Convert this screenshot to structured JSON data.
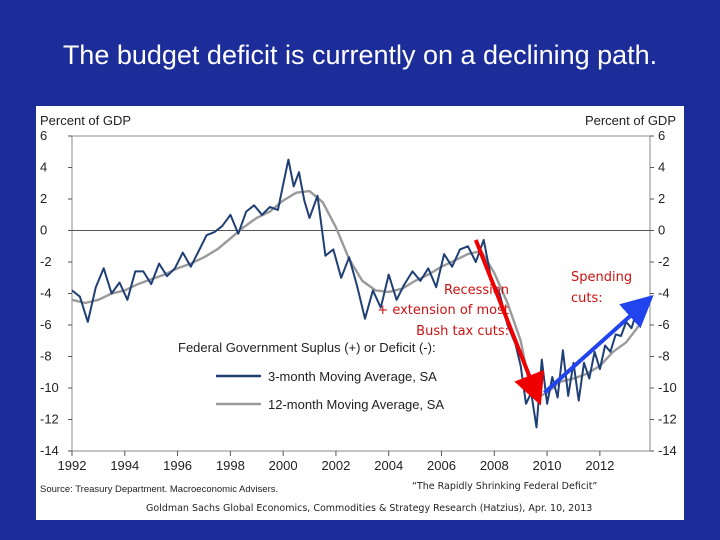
{
  "slide": {
    "title": "The budget deficit is currently on a declining path."
  },
  "colors": {
    "background": "#1c2d9a",
    "series_3m": "#1f3f75",
    "series_12m": "#9a9a9a",
    "annotation_text": "#cc1111",
    "red_arrow": "#ee0000",
    "blue_arrow": "#2244ee"
  },
  "chart_data": {
    "type": "line",
    "title": "Federal Government Suplus (+) or Deficit (-):",
    "ylabel_left": "Percent of GDP",
    "ylabel_right": "Percent of GDP",
    "xlim": [
      1992,
      2013.9
    ],
    "ylim": [
      -14,
      6
    ],
    "x_ticks": [
      1992,
      1994,
      1996,
      1998,
      2000,
      2002,
      2004,
      2006,
      2008,
      2010,
      2012
    ],
    "x_tick_labels": [
      "1992",
      "1994",
      "1996",
      "1998",
      "2000",
      "2002",
      "2004",
      "2006",
      "2008",
      "2010",
      "2012"
    ],
    "y_ticks": [
      6,
      4,
      2,
      0,
      -2,
      -4,
      -6,
      -8,
      -10,
      -12,
      -14
    ],
    "y_tick_labels": [
      "6",
      "4",
      "2",
      "0",
      "-2",
      "-4",
      "-6",
      "-8",
      "-10",
      "-12",
      "-14"
    ],
    "zero_line": true,
    "legend": [
      {
        "name": "3-month Moving Average, SA",
        "color": "#1f3f75"
      },
      {
        "name": "12-month Moving Average, SA",
        "color": "#9a9a9a"
      }
    ],
    "series": [
      {
        "name": "3-month Moving Average, SA",
        "color": "#1f3f75",
        "x": [
          1992.0,
          1992.3,
          1992.6,
          1992.9,
          1993.2,
          1993.5,
          1993.8,
          1994.1,
          1994.4,
          1994.7,
          1995.0,
          1995.3,
          1995.6,
          1995.9,
          1996.2,
          1996.5,
          1996.8,
          1997.1,
          1997.4,
          1997.7,
          1998.0,
          1998.3,
          1998.6,
          1998.9,
          1999.2,
          1999.5,
          1999.8,
          2000.0,
          2000.2,
          2000.4,
          2000.6,
          2000.8,
          2001.0,
          2001.3,
          2001.6,
          2001.9,
          2002.2,
          2002.5,
          2002.8,
          2003.1,
          2003.4,
          2003.7,
          2004.0,
          2004.3,
          2004.6,
          2004.9,
          2005.2,
          2005.5,
          2005.8,
          2006.1,
          2006.4,
          2006.7,
          2007.0,
          2007.3,
          2007.6,
          2007.9,
          2008.2,
          2008.5,
          2008.8,
          2009.0,
          2009.2,
          2009.4,
          2009.6,
          2009.8,
          2010.0,
          2010.2,
          2010.4,
          2010.6,
          2010.8,
          2011.0,
          2011.2,
          2011.4,
          2011.6,
          2011.8,
          2012.0,
          2012.2,
          2012.4,
          2012.6,
          2012.8,
          2013.0,
          2013.2,
          2013.5
        ],
        "values": [
          -3.8,
          -4.2,
          -5.8,
          -3.6,
          -2.4,
          -4.0,
          -3.3,
          -4.4,
          -2.6,
          -2.6,
          -3.4,
          -2.1,
          -2.9,
          -2.4,
          -1.4,
          -2.3,
          -1.3,
          -0.3,
          -0.1,
          0.3,
          1.0,
          -0.2,
          1.2,
          1.6,
          1.0,
          1.5,
          1.3,
          2.9,
          4.5,
          2.8,
          3.7,
          1.9,
          0.8,
          2.2,
          -1.6,
          -1.2,
          -3.0,
          -1.7,
          -3.5,
          -5.6,
          -3.8,
          -4.9,
          -2.8,
          -4.4,
          -3.4,
          -2.6,
          -3.2,
          -2.4,
          -3.6,
          -1.5,
          -2.3,
          -1.2,
          -1.0,
          -2.0,
          -0.6,
          -3.2,
          -4.0,
          -6.0,
          -7.2,
          -8.6,
          -11.0,
          -10.3,
          -12.5,
          -8.2,
          -11.0,
          -9.3,
          -10.6,
          -7.6,
          -10.5,
          -8.4,
          -10.8,
          -8.4,
          -9.4,
          -7.7,
          -8.8,
          -7.3,
          -7.7,
          -6.6,
          -6.7,
          -5.8,
          -6.2,
          -4.6
        ]
      },
      {
        "name": "12-month Moving Average, SA",
        "color": "#9a9a9a",
        "x": [
          1992.0,
          1992.5,
          1993.0,
          1993.5,
          1994.0,
          1994.5,
          1995.0,
          1995.5,
          1996.0,
          1996.5,
          1997.0,
          1997.5,
          1998.0,
          1998.5,
          1999.0,
          1999.5,
          2000.0,
          2000.5,
          2001.0,
          2001.5,
          2002.0,
          2002.5,
          2003.0,
          2003.5,
          2004.0,
          2004.5,
          2005.0,
          2005.5,
          2006.0,
          2006.5,
          2007.0,
          2007.5,
          2008.0,
          2008.5,
          2009.0,
          2009.3,
          2009.6,
          2010.0,
          2010.5,
          2011.0,
          2011.5,
          2012.0,
          2012.5,
          2013.0,
          2013.5
        ],
        "values": [
          -4.4,
          -4.6,
          -4.4,
          -4.0,
          -3.8,
          -3.4,
          -3.1,
          -2.8,
          -2.4,
          -2.1,
          -1.7,
          -1.2,
          -0.5,
          0.2,
          0.8,
          1.2,
          1.9,
          2.4,
          2.5,
          1.8,
          0.2,
          -1.8,
          -3.2,
          -3.8,
          -3.9,
          -3.7,
          -3.2,
          -2.8,
          -2.3,
          -1.9,
          -1.5,
          -1.3,
          -2.7,
          -4.6,
          -7.0,
          -9.5,
          -10.6,
          -10.3,
          -9.6,
          -9.4,
          -9.1,
          -8.6,
          -7.7,
          -7.1,
          -6.0
        ]
      }
    ],
    "annotations": {
      "recession": [
        "Recession",
        "+ extension of most",
        "Bush tax cuts:"
      ],
      "spending": [
        "Spending",
        "cuts:"
      ],
      "red_arrow": {
        "from": [
          2007.3,
          -0.6
        ],
        "to": [
          2009.6,
          -10.4
        ]
      },
      "blue_arrow": {
        "from": [
          2009.9,
          -10.3
        ],
        "to": [
          2013.7,
          -4.6
        ]
      }
    },
    "source": "Source: Treasury Department. Macroeconomic Advisers.",
    "citation_title": "“The Rapidly Shrinking Federal Deficit”",
    "citation_line": "Goldman Sachs Global Economics, Commodities & Strategy Research (Hatzius), Apr. 10, 2013"
  }
}
